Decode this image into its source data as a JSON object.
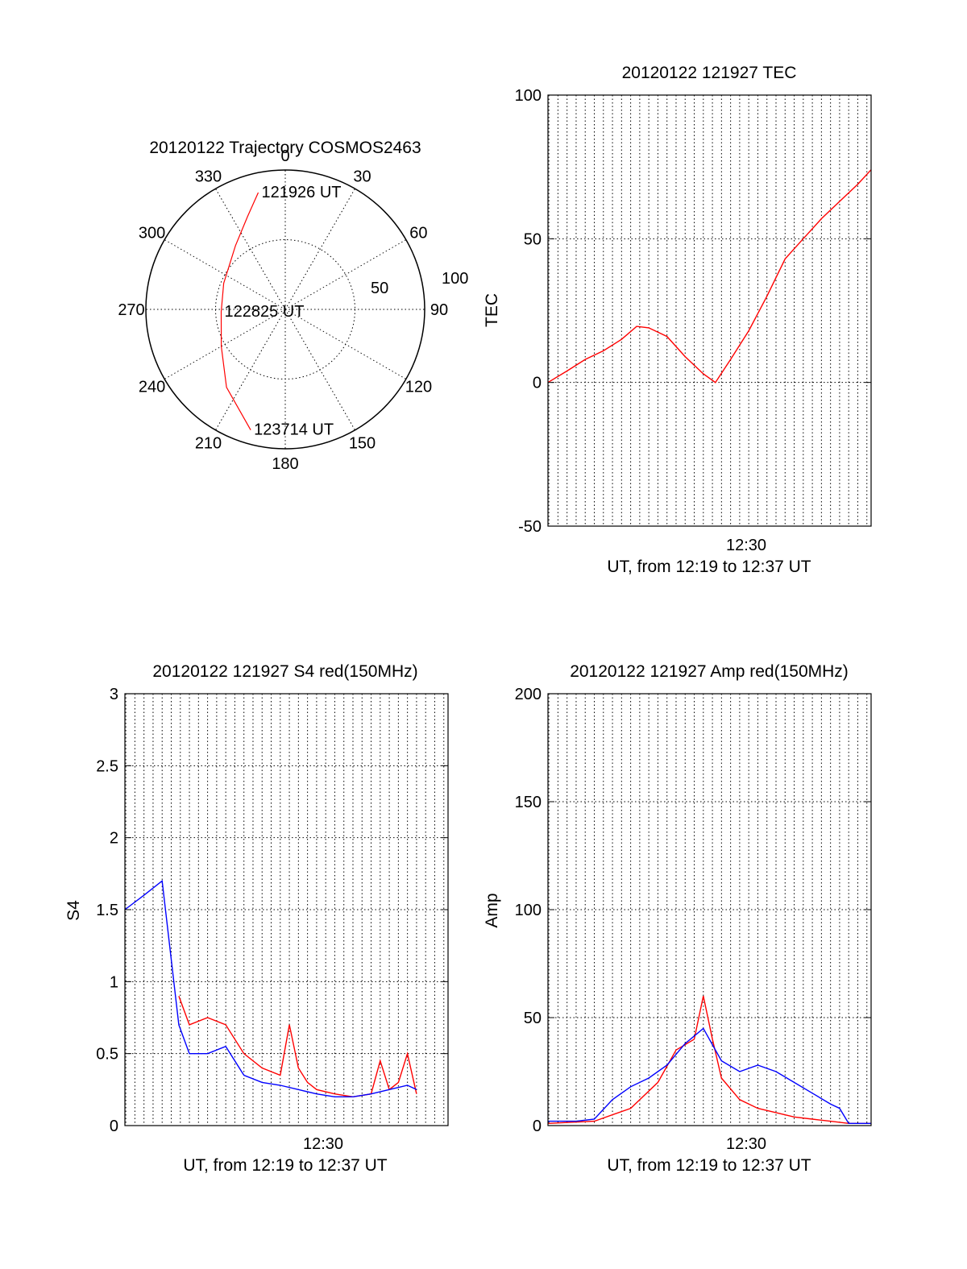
{
  "chart_data": [
    {
      "type": "polar",
      "title": "20120122 Trajectory COSMOS2463",
      "angle_labels": [
        "0",
        "30",
        "60",
        "90",
        "120",
        "150",
        "180",
        "210",
        "240",
        "270",
        "300",
        "330"
      ],
      "radius_labels": [
        "50",
        "100"
      ],
      "rlim": [
        0,
        100
      ],
      "grid": true,
      "series": [
        {
          "color": "#ff0000",
          "points": [
            {
              "az": 347,
              "r": 86
            },
            {
              "az": 338,
              "r": 72
            },
            {
              "az": 322,
              "r": 58
            },
            {
              "az": 293,
              "r": 48
            },
            {
              "az": 268,
              "r": 46
            },
            {
              "az": 240,
              "r": 53
            },
            {
              "az": 217,
              "r": 70
            },
            {
              "az": 196,
              "r": 90
            }
          ]
        }
      ],
      "annotations": [
        {
          "text": "121926 UT",
          "az": 347,
          "r": 86
        },
        {
          "text": "122825 UT",
          "az": 268,
          "r": 46
        },
        {
          "text": "123714 UT",
          "az": 196,
          "r": 90
        }
      ]
    },
    {
      "type": "line",
      "title": "20120122 121927 TEC",
      "xlabel": "UT, from 12:19 to 12:37 UT",
      "ylabel": "TEC",
      "x_tick_label": "12:30",
      "xlim": [
        "12:19:27",
        "12:37:14"
      ],
      "ylim": [
        -50,
        100
      ],
      "yticks": [
        -50,
        0,
        50,
        100
      ],
      "grid": true,
      "series": [
        {
          "color": "#ff0000",
          "x": [
            "12:19:27",
            "12:20:30",
            "12:21:30",
            "12:22:30",
            "12:23:30",
            "12:24:20",
            "12:25:00",
            "12:26:00",
            "12:27:00",
            "12:28:00",
            "12:28:40",
            "12:29:30",
            "12:30:30",
            "12:31:30",
            "12:32:30",
            "12:33:30",
            "12:34:30",
            "12:35:30",
            "12:36:30",
            "12:37:14"
          ],
          "values": [
            0,
            4,
            8,
            11,
            15,
            19.5,
            19,
            16,
            9,
            3,
            0,
            8,
            18,
            30,
            43,
            50,
            57,
            63,
            69,
            74
          ]
        }
      ]
    },
    {
      "type": "line",
      "title": "20120122 121927 S4 red(150MHz)",
      "xlabel": "UT, from 12:19 to 12:37 UT",
      "ylabel": "S4",
      "x_tick_label": "12:30",
      "xlim": [
        "12:19:27",
        "12:37:14"
      ],
      "ylim": [
        0,
        3
      ],
      "yticks": [
        0,
        0.5,
        1,
        1.5,
        2,
        2.5,
        3
      ],
      "grid": true,
      "series": [
        {
          "color": "#ff0000",
          "x": [
            "12:22:25",
            "12:23:00",
            "12:24:00",
            "12:25:00",
            "12:26:00",
            "12:27:00",
            "12:28:00",
            "12:28:30",
            "12:29:00",
            "12:29:30",
            "12:30:00",
            "12:31:00",
            "12:32:00",
            "12:33:00",
            "12:33:30",
            "12:34:00",
            "12:34:30",
            "12:35:00",
            "12:35:30"
          ],
          "values": [
            0.9,
            0.7,
            0.75,
            0.7,
            0.5,
            0.4,
            0.35,
            0.7,
            0.4,
            0.3,
            0.25,
            0.22,
            0.2,
            0.22,
            0.45,
            0.25,
            0.3,
            0.5,
            0.22
          ]
        },
        {
          "color": "#0000ff",
          "x": [
            "12:19:27",
            "12:20:30",
            "12:21:30",
            "12:22:25",
            "12:23:00",
            "12:24:00",
            "12:25:00",
            "12:26:00",
            "12:27:00",
            "12:28:00",
            "12:29:00",
            "12:30:00",
            "12:31:00",
            "12:32:00",
            "12:33:00",
            "12:34:00",
            "12:35:00",
            "12:35:30"
          ],
          "values": [
            1.5,
            1.6,
            1.7,
            0.7,
            0.5,
            0.5,
            0.55,
            0.35,
            0.3,
            0.28,
            0.25,
            0.22,
            0.2,
            0.2,
            0.22,
            0.25,
            0.28,
            0.25
          ]
        }
      ]
    },
    {
      "type": "line",
      "title": "20120122 121927 Amp red(150MHz)",
      "xlabel": "UT, from 12:19 to 12:37 UT",
      "ylabel": "Amp",
      "x_tick_label": "12:30",
      "xlim": [
        "12:19:27",
        "12:37:14"
      ],
      "ylim": [
        0,
        200
      ],
      "yticks": [
        0,
        50,
        100,
        150,
        200
      ],
      "grid": true,
      "series": [
        {
          "color": "#ff0000",
          "x": [
            "12:19:27",
            "12:22:00",
            "12:24:00",
            "12:25:30",
            "12:26:30",
            "12:27:30",
            "12:28:00",
            "12:28:30",
            "12:29:00",
            "12:30:00",
            "12:31:00",
            "12:32:00",
            "12:33:00",
            "12:34:00",
            "12:35:00",
            "12:36:00",
            "12:37:14"
          ],
          "values": [
            1,
            2,
            8,
            20,
            35,
            40,
            60,
            40,
            22,
            12,
            8,
            6,
            4,
            3,
            2,
            1,
            1
          ]
        },
        {
          "color": "#0000ff",
          "x": [
            "12:19:27",
            "12:21:00",
            "12:22:00",
            "12:23:00",
            "12:24:00",
            "12:25:00",
            "12:26:00",
            "12:27:00",
            "12:28:00",
            "12:29:00",
            "12:30:00",
            "12:31:00",
            "12:32:00",
            "12:33:00",
            "12:34:00",
            "12:35:00",
            "12:35:30",
            "12:36:00",
            "12:37:14"
          ],
          "values": [
            2,
            2,
            3,
            12,
            18,
            22,
            28,
            38,
            45,
            30,
            25,
            28,
            25,
            20,
            15,
            10,
            8,
            1,
            1
          ]
        }
      ]
    }
  ]
}
